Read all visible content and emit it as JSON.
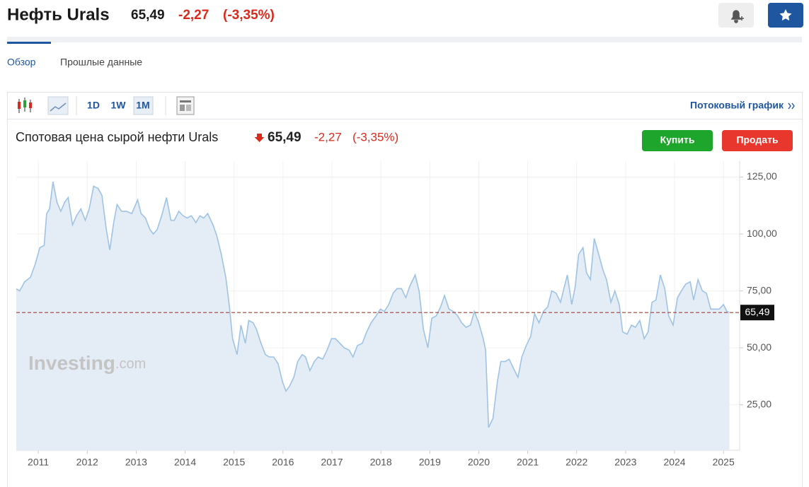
{
  "header": {
    "title": "Нефть Urals",
    "price": "65,49",
    "change": "-2,27",
    "change_pct": "(-3,35%)"
  },
  "tabs": [
    "Обзор",
    "Прошлые данные"
  ],
  "toolbar": {
    "intervals": [
      "1D",
      "1W",
      "1M"
    ],
    "streaming": "Потоковый график"
  },
  "quote": {
    "name": "Спотовая цена сырой нефти Urals",
    "price": "65,49",
    "change": "-2,27",
    "change_pct": "(-3,35%)"
  },
  "buttons": {
    "buy": "Купить",
    "sell": "Продать"
  },
  "watermark": {
    "brand": "Investing",
    "suffix": ".com"
  },
  "chart_data": {
    "type": "area",
    "color": "#9ec3e4",
    "fill": "#e4edf5",
    "grid": true,
    "xlim": [
      2010.55,
      2025.33
    ],
    "xticks": [
      2011,
      2012,
      2013,
      2014,
      2015,
      2016,
      2017,
      2018,
      2019,
      2020,
      2021,
      2022,
      2023,
      2024,
      2025
    ],
    "ylim": [
      5,
      132
    ],
    "yticks": [
      {
        "value": 25,
        "label": "25,00"
      },
      {
        "value": 50,
        "label": "50,00"
      },
      {
        "value": 75,
        "label": "75,00"
      },
      {
        "value": 100,
        "label": "100,00"
      },
      {
        "value": 125,
        "label": "125,00"
      }
    ],
    "last_price": {
      "value": 65.49,
      "label": "65,49",
      "color": "#b03a2e"
    },
    "x": [
      2010.55,
      2010.62,
      2010.72,
      2010.84,
      2010.94,
      2011.03,
      2011.12,
      2011.17,
      2011.23,
      2011.3,
      2011.38,
      2011.46,
      2011.54,
      2011.61,
      2011.7,
      2011.78,
      2011.87,
      2011.96,
      2012.04,
      2012.13,
      2012.22,
      2012.3,
      2012.39,
      2012.46,
      2012.54,
      2012.61,
      2012.7,
      2012.8,
      2012.91,
      2013.03,
      2013.1,
      2013.19,
      2013.28,
      2013.35,
      2013.43,
      2013.52,
      2013.62,
      2013.71,
      2013.78,
      2013.87,
      2013.96,
      2014.04,
      2014.13,
      2014.22,
      2014.3,
      2014.38,
      2014.46,
      2014.57,
      2014.65,
      2014.74,
      2014.83,
      2014.9,
      2014.97,
      2015.06,
      2015.14,
      2015.23,
      2015.3,
      2015.39,
      2015.46,
      2015.55,
      2015.64,
      2015.72,
      2015.81,
      2015.9,
      2015.99,
      2016.06,
      2016.13,
      2016.22,
      2016.3,
      2016.39,
      2016.46,
      2016.55,
      2016.64,
      2016.72,
      2016.81,
      2016.9,
      2016.99,
      2017.07,
      2017.16,
      2017.25,
      2017.35,
      2017.43,
      2017.52,
      2017.62,
      2017.71,
      2017.8,
      2017.9,
      2017.99,
      2018.07,
      2018.16,
      2018.25,
      2018.33,
      2018.42,
      2018.51,
      2018.59,
      2018.7,
      2018.78,
      2018.87,
      2018.96,
      2019.04,
      2019.13,
      2019.22,
      2019.3,
      2019.39,
      2019.48,
      2019.57,
      2019.65,
      2019.74,
      2019.83,
      2019.91,
      2020.0,
      2020.09,
      2020.14,
      2020.2,
      2020.29,
      2020.38,
      2020.45,
      2020.54,
      2020.62,
      2020.71,
      2020.8,
      2020.88,
      2020.97,
      2021.06,
      2021.14,
      2021.23,
      2021.32,
      2021.41,
      2021.49,
      2021.58,
      2021.67,
      2021.75,
      2021.81,
      2021.9,
      2021.97,
      2022.04,
      2022.13,
      2022.2,
      2022.28,
      2022.36,
      2022.45,
      2022.54,
      2022.61,
      2022.7,
      2022.78,
      2022.87,
      2022.94,
      2023.03,
      2023.12,
      2023.2,
      2023.29,
      2023.38,
      2023.46,
      2023.54,
      2023.62,
      2023.71,
      2023.8,
      2023.88,
      2023.97,
      2024.06,
      2024.14,
      2024.23,
      2024.32,
      2024.39,
      2024.48,
      2024.57,
      2024.65,
      2024.74,
      2024.83,
      2024.91,
      2025.0,
      2025.07,
      2025.12
    ],
    "series": [
      {
        "name": "Urals",
        "values": [
          75.9,
          75,
          79,
          81,
          87,
          94,
          95,
          109,
          111,
          123,
          114,
          110,
          114,
          116,
          104,
          108,
          111,
          106,
          111,
          121,
          120,
          117,
          102,
          93,
          105,
          113,
          110,
          110,
          109,
          115,
          109,
          107,
          102,
          100,
          102,
          108,
          116,
          106,
          106,
          110,
          108,
          107,
          108,
          105,
          108,
          107,
          109,
          104,
          99,
          91,
          81,
          69,
          54,
          47,
          60,
          52,
          62,
          61,
          58,
          52,
          47,
          46,
          46,
          43,
          35,
          31,
          33,
          37,
          44,
          47,
          46,
          40,
          44,
          46,
          45,
          49,
          54,
          54,
          52,
          50,
          49,
          46,
          51,
          52,
          57,
          61,
          64,
          67,
          66,
          69,
          74,
          76,
          76,
          72,
          77,
          82,
          75,
          58,
          50,
          63,
          64,
          68,
          73,
          67,
          66,
          64,
          61,
          59,
          60,
          66,
          61,
          54,
          49,
          15,
          19,
          35,
          44,
          44,
          45,
          41,
          37,
          46,
          51,
          55,
          65,
          61,
          66,
          68,
          75,
          74,
          70,
          77,
          82,
          69,
          77,
          91,
          94,
          83,
          80,
          98,
          91,
          84,
          80,
          70,
          75,
          69,
          57,
          56,
          60,
          59,
          62,
          54,
          57,
          70,
          71,
          82,
          76,
          64,
          60,
          72,
          75,
          78,
          79,
          71,
          80,
          75,
          74,
          67,
          67,
          67,
          69,
          66,
          65.49
        ]
      }
    ]
  }
}
